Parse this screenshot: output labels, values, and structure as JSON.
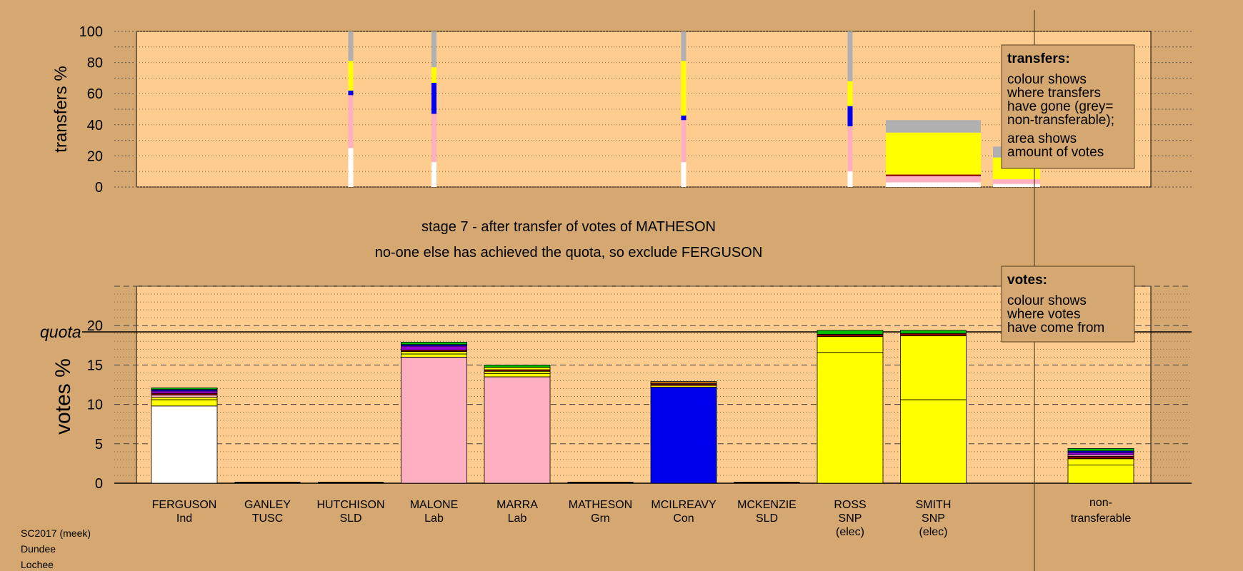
{
  "chart_data": [
    {
      "type": "bar",
      "title": "",
      "ylabel": "transfers %",
      "ylim": [
        0,
        100
      ],
      "yticks": [
        "0",
        "20",
        "40",
        "60",
        "80",
        "100"
      ],
      "legend": {
        "title": "transfers:",
        "lines": [
          "colour shows",
          "where transfers",
          "have gone (grey=",
          "non-transferable);",
          "",
          "area shows",
          "amount of votes"
        ]
      },
      "bars": [
        {
          "x": 3,
          "segments": [
            {
              "color": "#ffffff",
              "value": 25
            },
            {
              "color": "#ffb0c0",
              "value": 34
            },
            {
              "color": "#0000ee",
              "value": 3
            },
            {
              "color": "#ffff00",
              "value": 19
            },
            {
              "color": "#b0b0b0",
              "value": 19
            }
          ]
        },
        {
          "x": 4,
          "segments": [
            {
              "color": "#ffffff",
              "value": 16
            },
            {
              "color": "#ffb0c0",
              "value": 31
            },
            {
              "color": "#0000ee",
              "value": 20
            },
            {
              "color": "#ffff00",
              "value": 10
            },
            {
              "color": "#b0b0b0",
              "value": 23
            }
          ]
        },
        {
          "x": 7,
          "segments": [
            {
              "color": "#ffffff",
              "value": 16
            },
            {
              "color": "#ffb0c0",
              "value": 27
            },
            {
              "color": "#0000ee",
              "value": 3
            },
            {
              "color": "#ffff00",
              "value": 35
            },
            {
              "color": "#b0b0b0",
              "value": 19
            }
          ]
        },
        {
          "x": 9,
          "segments": [
            {
              "color": "#ffffff",
              "value": 10
            },
            {
              "color": "#ffb0c0",
              "value": 29
            },
            {
              "color": "#0000ee",
              "value": 13
            },
            {
              "color": "#ffff00",
              "value": 16
            },
            {
              "color": "#b0b0b0",
              "value": 32
            }
          ]
        },
        {
          "x": 10,
          "segments": [
            {
              "color": "#ffffff",
              "value": 3
            },
            {
              "color": "#ffb0c0",
              "value": 4
            },
            {
              "color": "#8b0000",
              "value": 1
            },
            {
              "color": "#ffff00",
              "value": 27
            },
            {
              "color": "#b0b0b0",
              "value": 8
            }
          ]
        },
        {
          "x": 11,
          "segments": [
            {
              "color": "#ffffff",
              "value": 2
            },
            {
              "color": "#ffb0c0",
              "value": 3
            },
            {
              "color": "#ffff00",
              "value": 14
            },
            {
              "color": "#b0b0b0",
              "value": 7
            }
          ]
        }
      ]
    },
    {
      "type": "bar",
      "title": "stage 7 - after transfer of votes of MATHESON",
      "subtitle": "no-one else has achieved the quota, so exclude FERGUSON",
      "ylabel": "votes %",
      "ylim": [
        0,
        25
      ],
      "yticks": [
        "0",
        "5",
        "10",
        "15",
        "20"
      ],
      "quota": 19.2,
      "quota_label": "quota",
      "legend": {
        "title": "votes:",
        "lines": [
          "colour shows",
          "where votes",
          "have come from"
        ]
      },
      "categories": [
        {
          "name": "FERGUSON",
          "party": "Ind",
          "note": ""
        },
        {
          "name": "GANLEY",
          "party": "TUSC",
          "note": ""
        },
        {
          "name": "HUTCHISON",
          "party": "SLD",
          "note": ""
        },
        {
          "name": "MALONE",
          "party": "Lab",
          "note": ""
        },
        {
          "name": "MARRA",
          "party": "Lab",
          "note": ""
        },
        {
          "name": "MATHESON",
          "party": "Grn",
          "note": ""
        },
        {
          "name": "MCILREAVY",
          "party": "Con",
          "note": ""
        },
        {
          "name": "MCKENZIE",
          "party": "SLD",
          "note": ""
        },
        {
          "name": "ROSS",
          "party": "SNP",
          "note": "(elec)"
        },
        {
          "name": "SMITH",
          "party": "SNP",
          "note": "(elec)"
        }
      ],
      "nontransferable_label": [
        "non-",
        "transferable"
      ],
      "bars": [
        {
          "x": 1,
          "segments": [
            {
              "color": "#ffffff",
              "value": 9.8
            },
            {
              "color": "#ffff00",
              "value": 0.8
            },
            {
              "color": "#ffff00",
              "value": 0.3
            },
            {
              "color": "#ffb0c0",
              "value": 0.3
            },
            {
              "color": "#8b0000",
              "value": 0.2
            },
            {
              "color": "#9400d3",
              "value": 0.3
            },
            {
              "color": "#0000ee",
              "value": 0.2
            },
            {
              "color": "#00c000",
              "value": 0.2
            }
          ]
        },
        {
          "x": 4,
          "segments": [
            {
              "color": "#ffb0c0",
              "value": 16.0
            },
            {
              "color": "#ffff00",
              "value": 0.4
            },
            {
              "color": "#ffff00",
              "value": 0.3
            },
            {
              "color": "#8b0000",
              "value": 0.2
            },
            {
              "color": "#9400d3",
              "value": 0.5
            },
            {
              "color": "#0000ee",
              "value": 0.2
            },
            {
              "color": "#00c000",
              "value": 0.3
            }
          ]
        },
        {
          "x": 5,
          "segments": [
            {
              "color": "#ffb0c0",
              "value": 13.5
            },
            {
              "color": "#ffff00",
              "value": 0.4
            },
            {
              "color": "#ffff00",
              "value": 0.3
            },
            {
              "color": "#8b0000",
              "value": 0.2
            },
            {
              "color": "#ffff00",
              "value": 0.3
            },
            {
              "color": "#00c000",
              "value": 0.3
            }
          ]
        },
        {
          "x": 7,
          "segments": [
            {
              "color": "#0000ee",
              "value": 12.2
            },
            {
              "color": "#ffff00",
              "value": 0.2
            },
            {
              "color": "#8b0000",
              "value": 0.2
            },
            {
              "color": "#ffb0c0",
              "value": 0.1
            },
            {
              "color": "#ff8c00",
              "value": 0.2
            }
          ]
        },
        {
          "x": 9,
          "segments": [
            {
              "color": "#ffff00",
              "value": 16.6
            },
            {
              "color": "#ffff00",
              "value": 2.0
            },
            {
              "color": "#8b0000",
              "value": 0.3
            },
            {
              "color": "#00c000",
              "value": 0.5
            }
          ]
        },
        {
          "x": 10,
          "segments": [
            {
              "color": "#ffff00",
              "value": 10.6
            },
            {
              "color": "#ffff00",
              "value": 8.1
            },
            {
              "color": "#8b0000",
              "value": 0.3
            },
            {
              "color": "#00c000",
              "value": 0.4
            }
          ]
        },
        {
          "x": 12,
          "segments": [
            {
              "color": "#ffff00",
              "value": 2.3
            },
            {
              "color": "#ffff00",
              "value": 0.8
            },
            {
              "color": "#8b0000",
              "value": 0.3
            },
            {
              "color": "#ffb0c0",
              "value": 0.2
            },
            {
              "color": "#9400d3",
              "value": 0.3
            },
            {
              "color": "#0000ee",
              "value": 0.2
            },
            {
              "color": "#00c000",
              "value": 0.3
            }
          ]
        }
      ]
    }
  ],
  "footer": [
    "SC2017 (meek)",
    "Dundee",
    "Lochee"
  ],
  "colors": {
    "background": "#d4a870",
    "plot_area": "#ffcc90",
    "legend_box": "#d4a870"
  }
}
